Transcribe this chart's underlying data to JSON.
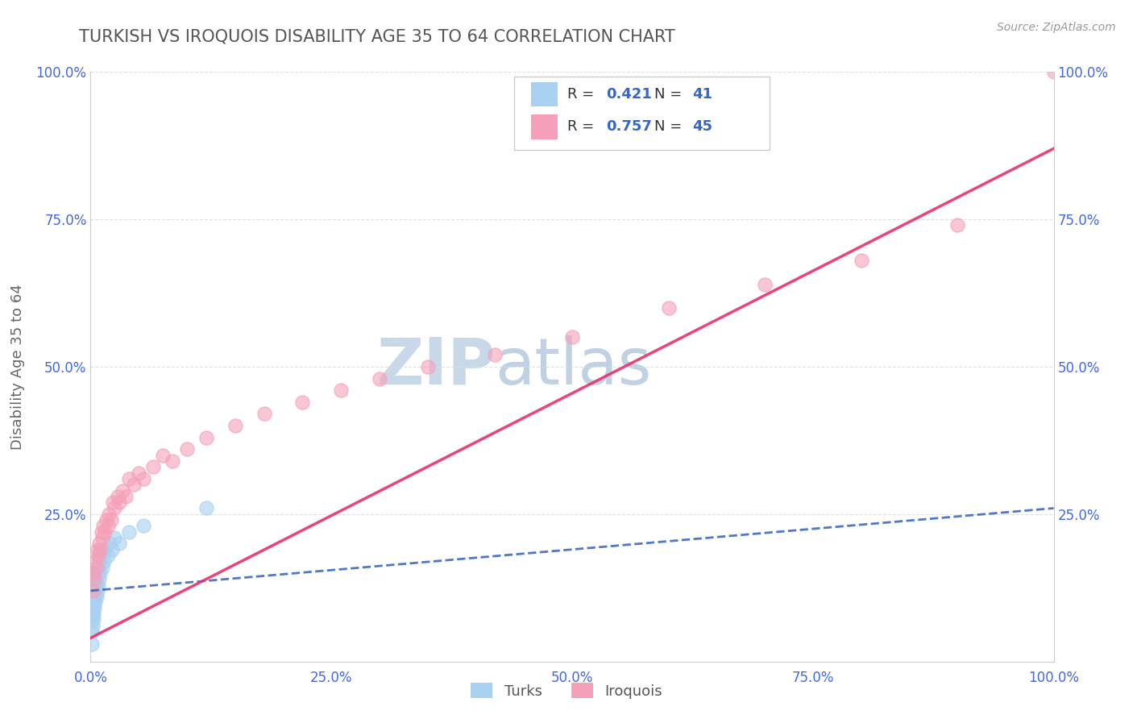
{
  "title": "TURKISH VS IROQUOIS DISABILITY AGE 35 TO 64 CORRELATION CHART",
  "source": "Source: ZipAtlas.com",
  "ylabel": "Disability Age 35 to 64",
  "turks_R": 0.421,
  "turks_N": 41,
  "iroquois_R": 0.757,
  "iroquois_N": 45,
  "turks_color": "#a8d0f0",
  "turks_line_color": "#3060c0",
  "iroquois_color": "#f5a0b8",
  "iroquois_line_color": "#e8306a",
  "watermark_color": "#d0dff0",
  "background_color": "#ffffff",
  "grid_color": "#dddddd",
  "title_color": "#555555",
  "axis_label_color": "#666666",
  "tick_color": "#4169E1",
  "turks_x": [
    0.001,
    0.001,
    0.001,
    0.002,
    0.002,
    0.002,
    0.002,
    0.003,
    0.003,
    0.003,
    0.003,
    0.004,
    0.004,
    0.004,
    0.005,
    0.005,
    0.005,
    0.005,
    0.006,
    0.006,
    0.006,
    0.007,
    0.007,
    0.008,
    0.008,
    0.009,
    0.009,
    0.01,
    0.01,
    0.012,
    0.012,
    0.014,
    0.015,
    0.018,
    0.02,
    0.022,
    0.025,
    0.03,
    0.04,
    0.055,
    0.12
  ],
  "turks_y": [
    0.03,
    0.05,
    0.07,
    0.06,
    0.08,
    0.09,
    0.1,
    0.07,
    0.08,
    0.1,
    0.12,
    0.09,
    0.11,
    0.13,
    0.1,
    0.12,
    0.14,
    0.15,
    0.11,
    0.13,
    0.15,
    0.12,
    0.15,
    0.13,
    0.16,
    0.14,
    0.17,
    0.15,
    0.18,
    0.16,
    0.19,
    0.17,
    0.19,
    0.18,
    0.2,
    0.19,
    0.21,
    0.2,
    0.22,
    0.23,
    0.26
  ],
  "iroquois_x": [
    0.002,
    0.003,
    0.004,
    0.005,
    0.006,
    0.007,
    0.008,
    0.009,
    0.01,
    0.011,
    0.012,
    0.013,
    0.015,
    0.016,
    0.018,
    0.019,
    0.021,
    0.023,
    0.025,
    0.028,
    0.03,
    0.033,
    0.036,
    0.04,
    0.045,
    0.05,
    0.055,
    0.065,
    0.075,
    0.085,
    0.1,
    0.12,
    0.15,
    0.18,
    0.22,
    0.26,
    0.3,
    0.35,
    0.42,
    0.5,
    0.6,
    0.7,
    0.8,
    0.9,
    1.0
  ],
  "iroquois_y": [
    0.12,
    0.15,
    0.14,
    0.17,
    0.16,
    0.19,
    0.18,
    0.2,
    0.19,
    0.22,
    0.21,
    0.23,
    0.22,
    0.24,
    0.23,
    0.25,
    0.24,
    0.27,
    0.26,
    0.28,
    0.27,
    0.29,
    0.28,
    0.31,
    0.3,
    0.32,
    0.31,
    0.33,
    0.35,
    0.34,
    0.36,
    0.38,
    0.4,
    0.42,
    0.44,
    0.46,
    0.48,
    0.5,
    0.52,
    0.55,
    0.6,
    0.64,
    0.68,
    0.74,
    1.0
  ],
  "turks_line_x": [
    0.0,
    1.0
  ],
  "turks_line_y": [
    0.12,
    0.26
  ],
  "iroquois_line_x": [
    0.0,
    1.0
  ],
  "iroquois_line_y": [
    0.04,
    0.87
  ],
  "xlim": [
    0.0,
    1.0
  ],
  "ylim": [
    0.0,
    1.0
  ],
  "xticks": [
    0.0,
    0.25,
    0.5,
    0.75,
    1.0
  ],
  "yticks": [
    0.25,
    0.5,
    0.75,
    1.0
  ],
  "xticklabels": [
    "0.0%",
    "25.0%",
    "50.0%",
    "75.0%",
    "100.0%"
  ],
  "yticklabels": [
    "25.0%",
    "50.0%",
    "75.0%",
    "100.0%"
  ],
  "right_yticklabels": [
    "25.0%",
    "50.0%",
    "75.0%",
    "100.0%"
  ]
}
